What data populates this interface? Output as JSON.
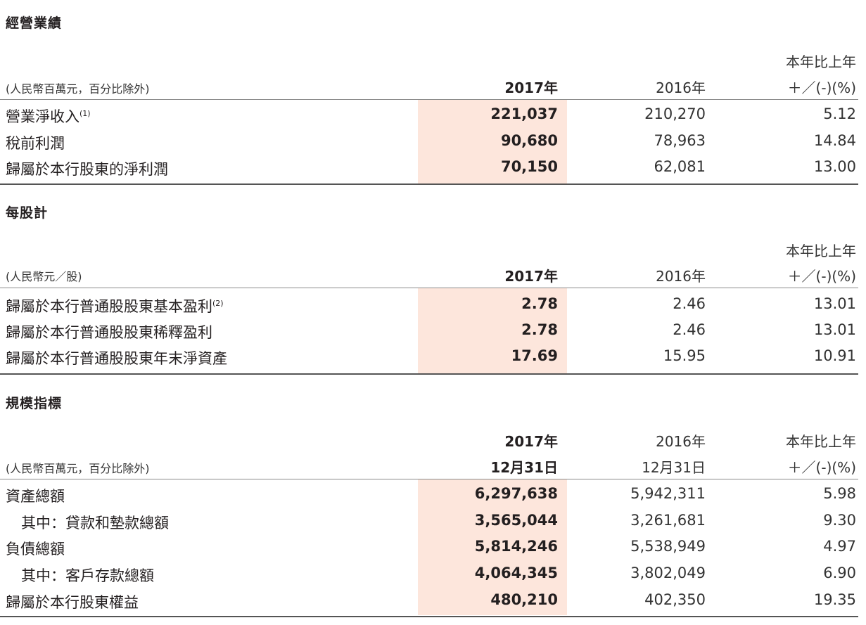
{
  "sections": [
    {
      "title": "經營業績",
      "header": {
        "unit": "(人民幣百萬元，百分比除外)",
        "col1": "2017年",
        "col2": "2016年",
        "col3_line1": "本年比上年",
        "col3_line2": "＋／(-)(%)"
      },
      "rows": [
        {
          "label": "營業淨收入",
          "note": "(1)",
          "v2017": "221,037",
          "v2016": "210,270",
          "change": "5.12"
        },
        {
          "label": "稅前利潤",
          "note": "",
          "v2017": "90,680",
          "v2016": "78,963",
          "change": "14.84"
        },
        {
          "label": "歸屬於本行股東的淨利潤",
          "note": "",
          "v2017": "70,150",
          "v2016": "62,081",
          "change": "13.00"
        }
      ]
    },
    {
      "title": "每股計",
      "header": {
        "unit": "(人民幣元／股)",
        "col1": "2017年",
        "col2": "2016年",
        "col3_line1": "本年比上年",
        "col3_line2": "＋／(-)(%)"
      },
      "rows": [
        {
          "label": "歸屬於本行普通股股東基本盈利",
          "note": "(2)",
          "v2017": "2.78",
          "v2016": "2.46",
          "change": "13.01"
        },
        {
          "label": "歸屬於本行普通股股東稀釋盈利",
          "note": "",
          "v2017": "2.78",
          "v2016": "2.46",
          "change": "13.01"
        },
        {
          "label": "歸屬於本行普通股股東年末淨資產",
          "note": "",
          "v2017": "17.69",
          "v2016": "15.95",
          "change": "10.91"
        }
      ]
    },
    {
      "title": "規模指標",
      "header": {
        "unit": "(人民幣百萬元，百分比除外)",
        "col1_line1": "2017年",
        "col1_line2": "12月31日",
        "col2_line1": "2016年",
        "col2_line2": "12月31日",
        "col3_line1": "本年比上年",
        "col3_line2": "＋／(-)(%)"
      },
      "rows": [
        {
          "label": "資產總額",
          "v2017": "6,297,638",
          "v2016": "5,942,311",
          "change": "5.98"
        },
        {
          "label": "其中：貸款和墊款總額",
          "v2017": "3,565,044",
          "v2016": "3,261,681",
          "change": "9.30"
        },
        {
          "label": "負債總額",
          "v2017": "5,814,246",
          "v2016": "5,538,949",
          "change": "4.97"
        },
        {
          "label": "其中：客戶存款總額",
          "v2017": "4,064,345",
          "v2016": "3,802,049",
          "change": "6.90"
        },
        {
          "label": "歸屬於本行股東權益",
          "v2017": "480,210",
          "v2016": "402,350",
          "change": "19.35"
        }
      ]
    }
  ]
}
